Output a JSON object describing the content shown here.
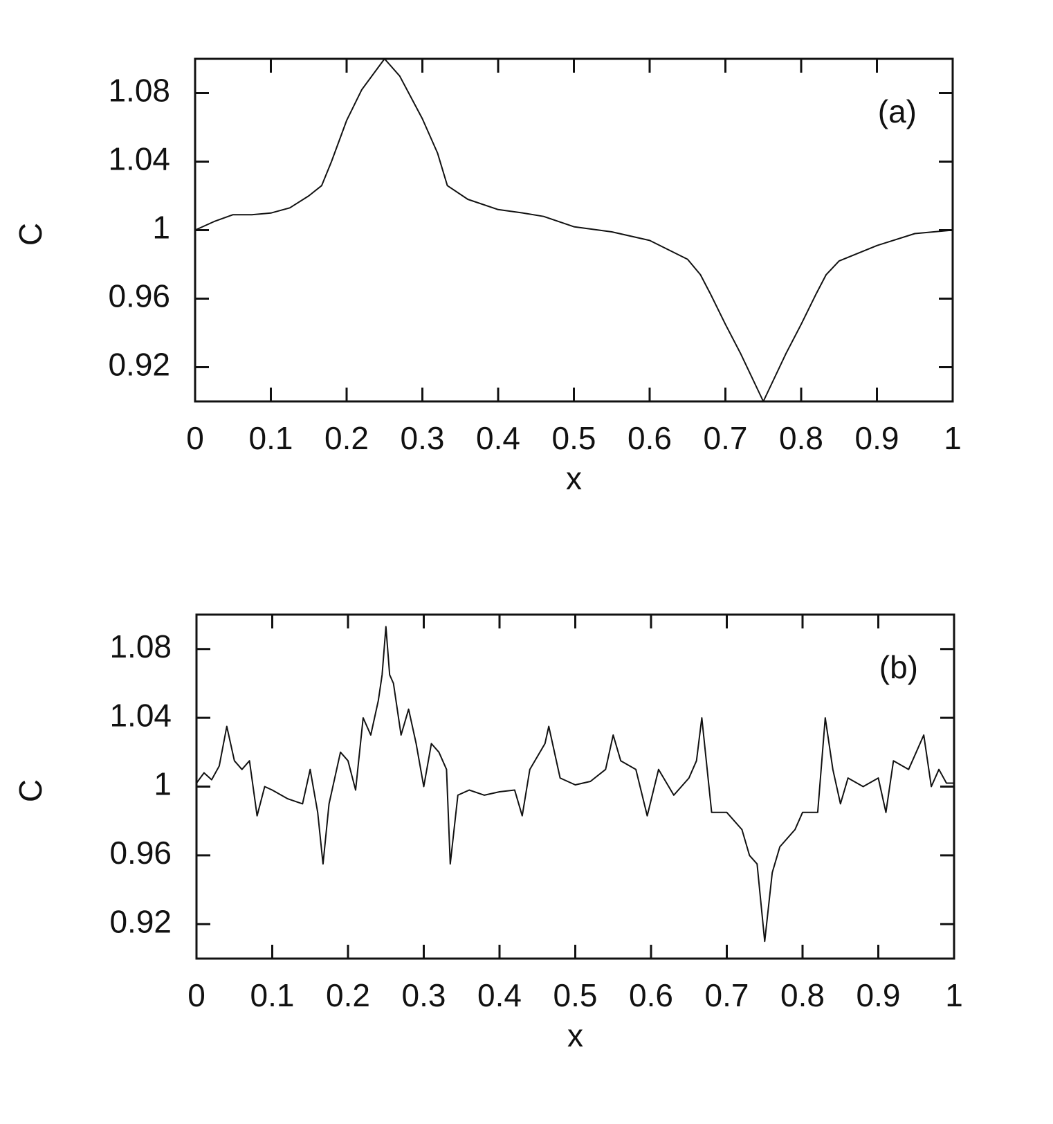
{
  "chart_data": [
    {
      "type": "line",
      "annotation": "(a)",
      "xlabel": "x",
      "ylabel": "C",
      "color": "#111111",
      "xlim": [
        0,
        1
      ],
      "xticks": [
        0,
        0.1,
        0.2,
        0.3,
        0.4,
        0.5,
        0.6,
        0.7,
        0.8,
        0.9,
        1
      ],
      "ylim": [
        0.9,
        1.1
      ],
      "yticks": [
        0.92,
        0.96,
        1,
        1.04,
        1.08
      ],
      "x": [
        0,
        0.025,
        0.05,
        0.075,
        0.1,
        0.125,
        0.15,
        0.167,
        0.18,
        0.2,
        0.22,
        0.25,
        0.27,
        0.3,
        0.32,
        0.333,
        0.36,
        0.4,
        0.433,
        0.46,
        0.5,
        0.55,
        0.6,
        0.65,
        0.667,
        0.68,
        0.7,
        0.72,
        0.75,
        0.78,
        0.8,
        0.82,
        0.833,
        0.85,
        0.9,
        0.95,
        1
      ],
      "values": [
        1.0,
        1.005,
        1.009,
        1.009,
        1.01,
        1.013,
        1.02,
        1.026,
        1.04,
        1.064,
        1.082,
        1.1,
        1.09,
        1.065,
        1.045,
        1.026,
        1.018,
        1.012,
        1.01,
        1.008,
        1.002,
        0.999,
        0.994,
        0.983,
        0.974,
        0.963,
        0.945,
        0.928,
        0.9,
        0.928,
        0.945,
        0.963,
        0.974,
        0.982,
        0.991,
        0.998,
        1.0
      ]
    },
    {
      "type": "line",
      "annotation": "(b)",
      "xlabel": "x",
      "ylabel": "C",
      "color": "#111111",
      "xlim": [
        0,
        1
      ],
      "xticks": [
        0,
        0.1,
        0.2,
        0.3,
        0.4,
        0.5,
        0.6,
        0.7,
        0.8,
        0.9,
        1
      ],
      "ylim": [
        0.9,
        1.1
      ],
      "yticks": [
        0.92,
        0.96,
        1,
        1.04,
        1.08
      ],
      "x": [
        0,
        0.01,
        0.02,
        0.03,
        0.04,
        0.05,
        0.06,
        0.07,
        0.08,
        0.09,
        0.1,
        0.12,
        0.14,
        0.15,
        0.16,
        0.167,
        0.175,
        0.19,
        0.2,
        0.21,
        0.22,
        0.23,
        0.24,
        0.245,
        0.25,
        0.255,
        0.26,
        0.27,
        0.28,
        0.29,
        0.3,
        0.31,
        0.32,
        0.33,
        0.335,
        0.345,
        0.36,
        0.38,
        0.4,
        0.42,
        0.43,
        0.44,
        0.46,
        0.465,
        0.48,
        0.5,
        0.52,
        0.54,
        0.55,
        0.56,
        0.58,
        0.595,
        0.61,
        0.63,
        0.65,
        0.66,
        0.667,
        0.68,
        0.7,
        0.72,
        0.73,
        0.74,
        0.75,
        0.76,
        0.77,
        0.79,
        0.8,
        0.82,
        0.83,
        0.84,
        0.85,
        0.86,
        0.88,
        0.9,
        0.91,
        0.92,
        0.94,
        0.95,
        0.96,
        0.97,
        0.98,
        0.99,
        1
      ],
      "values": [
        1.002,
        1.008,
        1.004,
        1.012,
        1.035,
        1.015,
        1.01,
        1.015,
        0.983,
        1.0,
        0.998,
        0.993,
        0.99,
        1.01,
        0.985,
        0.955,
        0.99,
        1.02,
        1.015,
        0.998,
        1.04,
        1.03,
        1.05,
        1.065,
        1.093,
        1.065,
        1.06,
        1.03,
        1.045,
        1.025,
        1.0,
        1.025,
        1.02,
        1.01,
        0.955,
        0.995,
        0.998,
        0.995,
        0.997,
        0.998,
        0.983,
        1.01,
        1.025,
        1.035,
        1.005,
        1.001,
        1.003,
        1.01,
        1.03,
        1.015,
        1.01,
        0.983,
        1.01,
        0.995,
        1.005,
        1.015,
        1.04,
        0.985,
        0.985,
        0.975,
        0.96,
        0.955,
        0.91,
        0.95,
        0.965,
        0.975,
        0.985,
        0.985,
        1.04,
        1.01,
        0.99,
        1.005,
        1.0,
        1.005,
        0.985,
        1.015,
        1.01,
        1.02,
        1.03,
        1.0,
        1.01,
        1.002,
        1.002
      ]
    }
  ]
}
